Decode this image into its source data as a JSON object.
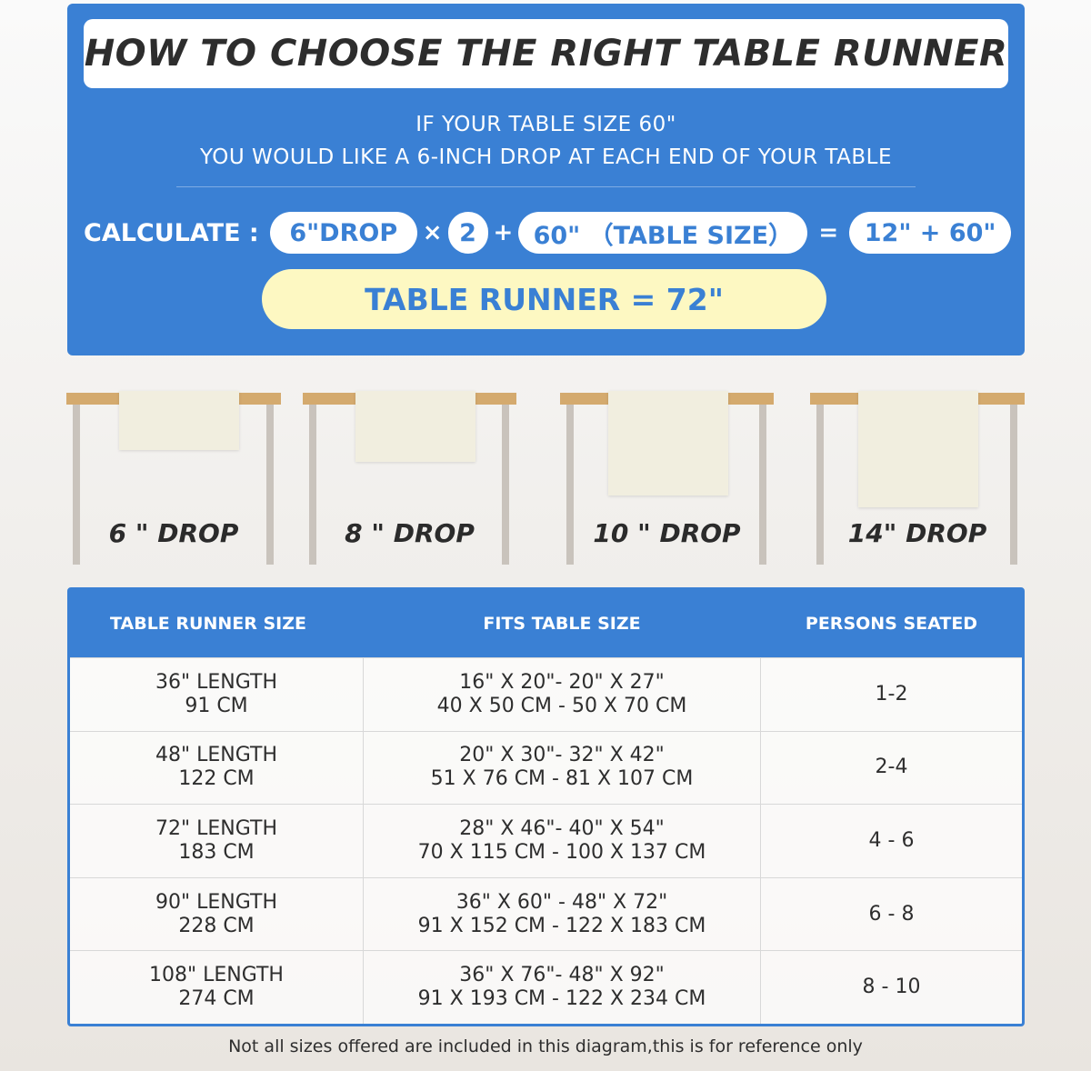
{
  "title": "HOW TO CHOOSE THE RIGHT TABLE RUNNER",
  "intro": {
    "line1": "IF YOUR TABLE SIZE 60\"",
    "line2": "YOU WOULD LIKE A 6-INCH DROP AT EACH END OF YOUR TABLE"
  },
  "calc": {
    "label": "CALCULATE :",
    "drop": "6\"DROP",
    "times": "×",
    "factor": "2",
    "plus": "+",
    "table": "60\" （TABLE SIZE）",
    "equals": "=",
    "sum": "12\" + 60\"",
    "result": "TABLE RUNNER = 72\""
  },
  "drops": [
    {
      "label": "6 \" DROP"
    },
    {
      "label": "8 \" DROP"
    },
    {
      "label": "10 \" DROP"
    },
    {
      "label": "14\" DROP"
    }
  ],
  "table": {
    "headers": [
      "TABLE RUNNER SIZE",
      "FITS TABLE SIZE",
      "PERSONS SEATED"
    ],
    "rows": [
      {
        "size": "36\" LENGTH",
        "size_cm": "91 CM",
        "fits": "16\" X 20\"- 20\" X 27\"",
        "fits_cm": "40 X 50 CM - 50 X 70 CM",
        "persons": "1-2"
      },
      {
        "size": "48\" LENGTH",
        "size_cm": "122 CM",
        "fits": "20\" X 30\"- 32\" X 42\"",
        "fits_cm": "51 X 76 CM - 81 X 107 CM",
        "persons": "2-4"
      },
      {
        "size": "72\" LENGTH",
        "size_cm": "183 CM",
        "fits": "28\" X 46\"- 40\" X 54\"",
        "fits_cm": "70 X 115 CM - 100 X 137 CM",
        "persons": "4 - 6"
      },
      {
        "size": "90\" LENGTH",
        "size_cm": "228 CM",
        "fits": "36\" X 60\" - 48\" X 72\"",
        "fits_cm": "91 X 152 CM - 122 X 183 CM",
        "persons": "6 - 8"
      },
      {
        "size": "108\" LENGTH",
        "size_cm": "274 CM",
        "fits": "36\" X 76\"- 48\" X 92\"",
        "fits_cm": "91 X 193 CM - 122 X 234 CM",
        "persons": "8 - 10"
      }
    ]
  },
  "footnote": "Not all sizes offered are included in this diagram,this is for reference only",
  "colors": {
    "accent": "#3a80d4",
    "result_bg": "#fdf8c2",
    "table_top": "#d4aa6e"
  }
}
